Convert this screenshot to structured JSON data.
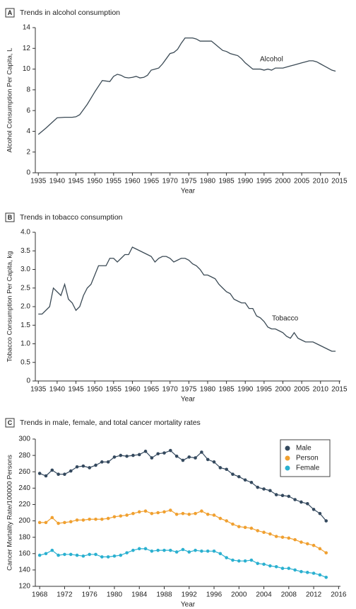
{
  "chart_data": [
    {
      "type": "line",
      "panel": "A",
      "title": "Trends in alcohol consumption",
      "xlabel": "Year",
      "ylabel": "Alcohol Consumption Per Capita, L",
      "x": [
        1935,
        1937,
        1940,
        1942,
        1944,
        1945,
        1946,
        1948,
        1950,
        1952,
        1954,
        1955,
        1956,
        1957,
        1958,
        1959,
        1960,
        1961,
        1962,
        1963,
        1964,
        1965,
        1966,
        1967,
        1968,
        1969,
        1970,
        1971,
        1972,
        1973,
        1974,
        1975,
        1976,
        1977,
        1978,
        1979,
        1980,
        1981,
        1982,
        1983,
        1984,
        1985,
        1986,
        1987,
        1988,
        1989,
        1990,
        1991,
        1992,
        1993,
        1994,
        1995,
        1996,
        1997,
        1998,
        1999,
        2000,
        2001,
        2002,
        2003,
        2004,
        2005,
        2006,
        2007,
        2008,
        2009,
        2010,
        2011,
        2012,
        2013,
        2014
      ],
      "series": [
        {
          "name": "Alcohol",
          "color": "#3b4a55",
          "values": [
            3.7,
            4.3,
            5.3,
            5.35,
            5.35,
            5.4,
            5.6,
            6.6,
            7.8,
            8.9,
            8.8,
            9.3,
            9.5,
            9.4,
            9.2,
            9.15,
            9.2,
            9.3,
            9.15,
            9.2,
            9.4,
            9.9,
            10.0,
            10.1,
            10.5,
            11.0,
            11.5,
            11.6,
            11.9,
            12.5,
            13.0,
            13.0,
            13.0,
            12.9,
            12.7,
            12.7,
            12.7,
            12.7,
            12.4,
            12.1,
            11.8,
            11.7,
            11.5,
            11.4,
            11.3,
            11.0,
            10.6,
            10.3,
            10.0,
            10.0,
            10.0,
            9.9,
            10.0,
            9.9,
            10.1,
            10.1,
            10.1,
            10.2,
            10.3,
            10.4,
            10.5,
            10.6,
            10.7,
            10.8,
            10.8,
            10.7,
            10.5,
            10.3,
            10.1,
            9.9,
            9.8
          ]
        }
      ],
      "xlim": [
        1934.2,
        2015.3
      ],
      "xticks": [
        1935,
        1940,
        1945,
        1950,
        1955,
        1960,
        1965,
        1970,
        1975,
        1980,
        1985,
        1990,
        1995,
        2000,
        2005,
        2010,
        2015
      ],
      "ylim": [
        0,
        14
      ],
      "yticks": [
        0,
        2,
        4,
        6,
        8,
        10,
        12,
        14
      ],
      "grid": false,
      "markers": false,
      "legend": false
    },
    {
      "type": "line",
      "panel": "B",
      "title": "Trends in tobacco consumption",
      "xlabel": "Year",
      "ylabel": "Tobacco Consumption Per Capita, kg",
      "x": [
        1935,
        1936,
        1938,
        1939,
        1941,
        1942,
        1943,
        1944,
        1945,
        1946,
        1947,
        1948,
        1949,
        1951,
        1952,
        1953,
        1954,
        1955,
        1956,
        1957,
        1958,
        1959,
        1960,
        1961,
        1962,
        1963,
        1964,
        1965,
        1966,
        1967,
        1968,
        1969,
        1970,
        1971,
        1972,
        1973,
        1974,
        1975,
        1976,
        1977,
        1978,
        1979,
        1980,
        1981,
        1982,
        1983,
        1984,
        1985,
        1986,
        1987,
        1988,
        1989,
        1990,
        1991,
        1992,
        1993,
        1994,
        1995,
        1996,
        1997,
        1998,
        1999,
        2000,
        2001,
        2002,
        2003,
        2004,
        2005,
        2006,
        2007,
        2008,
        2009,
        2010,
        2011,
        2012,
        2013,
        2014
      ],
      "series": [
        {
          "name": "Tobacco",
          "color": "#3b4a55",
          "values": [
            1.8,
            1.8,
            2.0,
            2.5,
            2.3,
            2.6,
            2.2,
            2.1,
            1.9,
            2.0,
            2.3,
            2.5,
            2.6,
            3.1,
            3.1,
            3.1,
            3.3,
            3.3,
            3.2,
            3.3,
            3.4,
            3.4,
            3.6,
            3.55,
            3.5,
            3.45,
            3.4,
            3.35,
            3.2,
            3.3,
            3.35,
            3.35,
            3.3,
            3.2,
            3.25,
            3.3,
            3.3,
            3.25,
            3.15,
            3.1,
            3.0,
            2.85,
            2.85,
            2.8,
            2.75,
            2.6,
            2.5,
            2.4,
            2.35,
            2.2,
            2.15,
            2.1,
            2.1,
            1.95,
            1.95,
            1.75,
            1.7,
            1.6,
            1.45,
            1.4,
            1.4,
            1.35,
            1.3,
            1.2,
            1.15,
            1.3,
            1.15,
            1.1,
            1.05,
            1.05,
            1.05,
            1.0,
            0.95,
            0.9,
            0.85,
            0.8,
            0.8
          ]
        }
      ],
      "xlim": [
        1934.2,
        2015.3
      ],
      "xticks": [
        1935,
        1940,
        1945,
        1950,
        1955,
        1960,
        1965,
        1970,
        1975,
        1980,
        1985,
        1990,
        1995,
        2000,
        2005,
        2010,
        2015
      ],
      "ylim": [
        0,
        4
      ],
      "yticks": [
        0,
        0.5,
        {
          "value": 1,
          "label": "1.0"
        },
        1.5,
        {
          "value": 2,
          "label": "2.0"
        },
        2.5,
        {
          "value": 3,
          "label": "3.0"
        },
        3.5,
        {
          "value": 4,
          "label": "4.0"
        }
      ],
      "grid": false,
      "markers": false,
      "legend": false
    },
    {
      "type": "line",
      "panel": "C",
      "title": "Trends in male, female, and total cancer mortality rates",
      "xlabel": "Year",
      "ylabel": "Cancer Mortality Rate/100000 Persons",
      "x": [
        1968,
        1969,
        1970,
        1971,
        1972,
        1973,
        1974,
        1975,
        1976,
        1977,
        1978,
        1979,
        1980,
        1981,
        1982,
        1983,
        1984,
        1985,
        1986,
        1987,
        1988,
        1989,
        1990,
        1991,
        1992,
        1993,
        1994,
        1995,
        1996,
        1997,
        1998,
        1999,
        2000,
        2001,
        2002,
        2003,
        2004,
        2005,
        2006,
        2007,
        2008,
        2009,
        2010,
        2011,
        2012,
        2013,
        2014
      ],
      "series": [
        {
          "name": "Male",
          "color": "#34495e",
          "values": [
            258,
            255,
            262,
            257,
            257,
            261,
            266,
            267,
            265,
            268,
            272,
            272,
            278,
            280,
            279,
            280,
            281,
            285,
            277,
            282,
            283,
            286,
            279,
            274,
            278,
            277,
            284,
            275,
            272,
            265,
            263,
            257,
            254,
            250,
            247,
            241,
            239,
            237,
            232,
            231,
            230,
            226,
            223,
            221,
            214,
            209,
            200
          ]
        },
        {
          "name": "Person",
          "color": "#f0a030",
          "values": [
            198,
            198,
            204,
            197,
            198,
            199,
            201,
            201,
            202,
            202,
            202,
            203,
            205,
            206,
            207,
            209,
            211,
            212,
            209,
            210,
            211,
            213,
            208,
            209,
            208,
            209,
            212,
            208,
            207,
            203,
            200,
            196,
            193,
            192,
            191,
            188,
            186,
            184,
            181,
            180,
            179,
            177,
            174,
            172,
            170,
            166,
            161
          ]
        },
        {
          "name": "Female",
          "color": "#2ab0d0",
          "values": [
            158,
            160,
            164,
            158,
            159,
            159,
            158,
            157,
            159,
            159,
            156,
            156,
            157,
            158,
            161,
            164,
            166,
            166,
            163,
            164,
            164,
            164,
            162,
            165,
            162,
            164,
            163,
            163,
            163,
            160,
            155,
            152,
            151,
            151,
            152,
            148,
            147,
            145,
            144,
            142,
            142,
            140,
            138,
            137,
            136,
            134,
            131
          ]
        }
      ],
      "xlim": [
        1967.3,
        2016.3
      ],
      "xticks": [
        1968,
        1972,
        1976,
        1980,
        1984,
        1988,
        1992,
        1996,
        2000,
        2004,
        2008,
        2012,
        2016
      ],
      "ylim": [
        120,
        300
      ],
      "yticks": [
        120,
        140,
        160,
        180,
        200,
        220,
        240,
        260,
        280,
        300
      ],
      "grid": false,
      "markers": true,
      "legend": true,
      "legend_position": "upper right"
    }
  ]
}
